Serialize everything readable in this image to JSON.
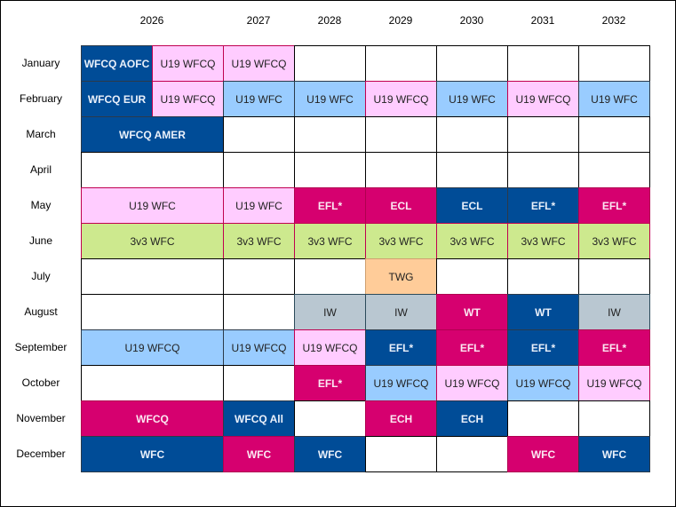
{
  "years": [
    "2026",
    "2027",
    "2028",
    "2029",
    "2030",
    "2031",
    "2032"
  ],
  "months": [
    "January",
    "February",
    "March",
    "April",
    "May",
    "June",
    "July",
    "August",
    "September",
    "October",
    "November",
    "December"
  ],
  "rows": [
    [
      {
        "t": "WFCQ AOFC",
        "s": "navy",
        "span": 1
      },
      {
        "t": "U19 WFCQ",
        "s": "pink",
        "span": 1
      },
      {
        "t": "U19 WFCQ",
        "s": "pink",
        "span": 1
      },
      {
        "t": "",
        "s": "empty",
        "span": 1
      },
      {
        "t": "",
        "s": "empty",
        "span": 1
      },
      {
        "t": "",
        "s": "empty",
        "span": 1
      },
      {
        "t": "",
        "s": "empty",
        "span": 1
      },
      {
        "t": "",
        "s": "empty",
        "span": 1
      }
    ],
    [
      {
        "t": "WFCQ EUR",
        "s": "navy",
        "span": 1
      },
      {
        "t": "U19 WFCQ",
        "s": "pink",
        "span": 1
      },
      {
        "t": "U19 WFC",
        "s": "blue",
        "span": 1
      },
      {
        "t": "U19 WFC",
        "s": "blue",
        "span": 1
      },
      {
        "t": "U19 WFCQ",
        "s": "pink",
        "span": 1
      },
      {
        "t": "U19 WFC",
        "s": "blue",
        "span": 1
      },
      {
        "t": "U19 WFCQ",
        "s": "pink",
        "span": 1
      },
      {
        "t": "U19 WFC",
        "s": "blue",
        "span": 1
      }
    ],
    [
      {
        "t": "WFCQ AMER",
        "s": "navy",
        "span": 2
      },
      {
        "t": "",
        "s": "empty",
        "span": 1
      },
      {
        "t": "",
        "s": "empty",
        "span": 1
      },
      {
        "t": "",
        "s": "empty",
        "span": 1
      },
      {
        "t": "",
        "s": "empty",
        "span": 1
      },
      {
        "t": "",
        "s": "empty",
        "span": 1
      },
      {
        "t": "",
        "s": "empty",
        "span": 1
      }
    ],
    [
      {
        "t": "",
        "s": "empty",
        "span": 2
      },
      {
        "t": "",
        "s": "empty",
        "span": 1
      },
      {
        "t": "",
        "s": "empty",
        "span": 1
      },
      {
        "t": "",
        "s": "empty",
        "span": 1
      },
      {
        "t": "",
        "s": "empty",
        "span": 1
      },
      {
        "t": "",
        "s": "empty",
        "span": 1
      },
      {
        "t": "",
        "s": "empty",
        "span": 1
      }
    ],
    [
      {
        "t": "U19 WFC",
        "s": "pink",
        "span": 2
      },
      {
        "t": "U19 WFC",
        "s": "pink",
        "span": 1
      },
      {
        "t": "EFL*",
        "s": "magenta",
        "span": 1
      },
      {
        "t": "ECL",
        "s": "magenta",
        "span": 1
      },
      {
        "t": "ECL",
        "s": "navy",
        "span": 1
      },
      {
        "t": "EFL*",
        "s": "navy",
        "span": 1
      },
      {
        "t": "EFL*",
        "s": "magenta",
        "span": 1
      }
    ],
    [
      {
        "t": "3v3 WFC",
        "s": "green",
        "span": 2
      },
      {
        "t": "3v3 WFC",
        "s": "green",
        "span": 1
      },
      {
        "t": "3v3 WFC",
        "s": "green",
        "span": 1
      },
      {
        "t": "3v3 WFC",
        "s": "green",
        "span": 1
      },
      {
        "t": "3v3 WFC",
        "s": "green",
        "span": 1
      },
      {
        "t": "3v3 WFC",
        "s": "green",
        "span": 1
      },
      {
        "t": "3v3 WFC",
        "s": "green",
        "span": 1
      }
    ],
    [
      {
        "t": "",
        "s": "empty",
        "span": 2
      },
      {
        "t": "",
        "s": "empty",
        "span": 1
      },
      {
        "t": "",
        "s": "empty",
        "span": 1
      },
      {
        "t": "TWG",
        "s": "peach",
        "span": 1
      },
      {
        "t": "",
        "s": "empty",
        "span": 1
      },
      {
        "t": "",
        "s": "empty",
        "span": 1
      },
      {
        "t": "",
        "s": "empty",
        "span": 1
      }
    ],
    [
      {
        "t": "",
        "s": "empty",
        "span": 2
      },
      {
        "t": "",
        "s": "empty",
        "span": 1
      },
      {
        "t": "IW",
        "s": "gray",
        "span": 1
      },
      {
        "t": "IW",
        "s": "gray",
        "span": 1
      },
      {
        "t": "WT",
        "s": "magenta",
        "span": 1
      },
      {
        "t": "WT",
        "s": "navy",
        "span": 1
      },
      {
        "t": "IW",
        "s": "gray",
        "span": 1
      }
    ],
    [
      {
        "t": "U19 WFCQ",
        "s": "blue",
        "span": 2
      },
      {
        "t": "U19 WFCQ",
        "s": "blue",
        "span": 1
      },
      {
        "t": "U19 WFCQ",
        "s": "pink",
        "span": 1
      },
      {
        "t": "EFL*",
        "s": "navy",
        "span": 1
      },
      {
        "t": "EFL*",
        "s": "magenta",
        "span": 1
      },
      {
        "t": "EFL*",
        "s": "navy",
        "span": 1
      },
      {
        "t": "EFL*",
        "s": "magenta",
        "span": 1
      }
    ],
    [
      {
        "t": "",
        "s": "empty",
        "span": 2
      },
      {
        "t": "",
        "s": "empty",
        "span": 1
      },
      {
        "t": "EFL*",
        "s": "magenta",
        "span": 1
      },
      {
        "t": "U19 WFCQ",
        "s": "blue",
        "span": 1
      },
      {
        "t": "U19 WFCQ",
        "s": "pink",
        "span": 1
      },
      {
        "t": "U19 WFCQ",
        "s": "blue",
        "span": 1
      },
      {
        "t": "U19 WFCQ",
        "s": "pink",
        "span": 1
      }
    ],
    [
      {
        "t": "WFCQ",
        "s": "magenta",
        "span": 2
      },
      {
        "t": "WFCQ All",
        "s": "navy",
        "span": 1
      },
      {
        "t": "",
        "s": "empty",
        "span": 1
      },
      {
        "t": "ECH",
        "s": "magenta",
        "span": 1
      },
      {
        "t": "ECH",
        "s": "navy",
        "span": 1
      },
      {
        "t": "",
        "s": "empty",
        "span": 1
      },
      {
        "t": "",
        "s": "empty",
        "span": 1
      }
    ],
    [
      {
        "t": "WFC",
        "s": "navy",
        "span": 2
      },
      {
        "t": "WFC",
        "s": "magenta",
        "span": 1
      },
      {
        "t": "WFC",
        "s": "navy",
        "span": 1
      },
      {
        "t": "",
        "s": "empty",
        "span": 1
      },
      {
        "t": "",
        "s": "empty",
        "span": 1
      },
      {
        "t": "WFC",
        "s": "magenta",
        "span": 1
      },
      {
        "t": "WFC",
        "s": "navy",
        "span": 1
      }
    ]
  ],
  "colors": {
    "navy": "#004C97",
    "magenta": "#D6006F",
    "pink": "#FFCCFF",
    "blue": "#99CCFF",
    "green": "#CDE98E",
    "peach": "#FFCC99",
    "gray": "#B9C7D1"
  }
}
